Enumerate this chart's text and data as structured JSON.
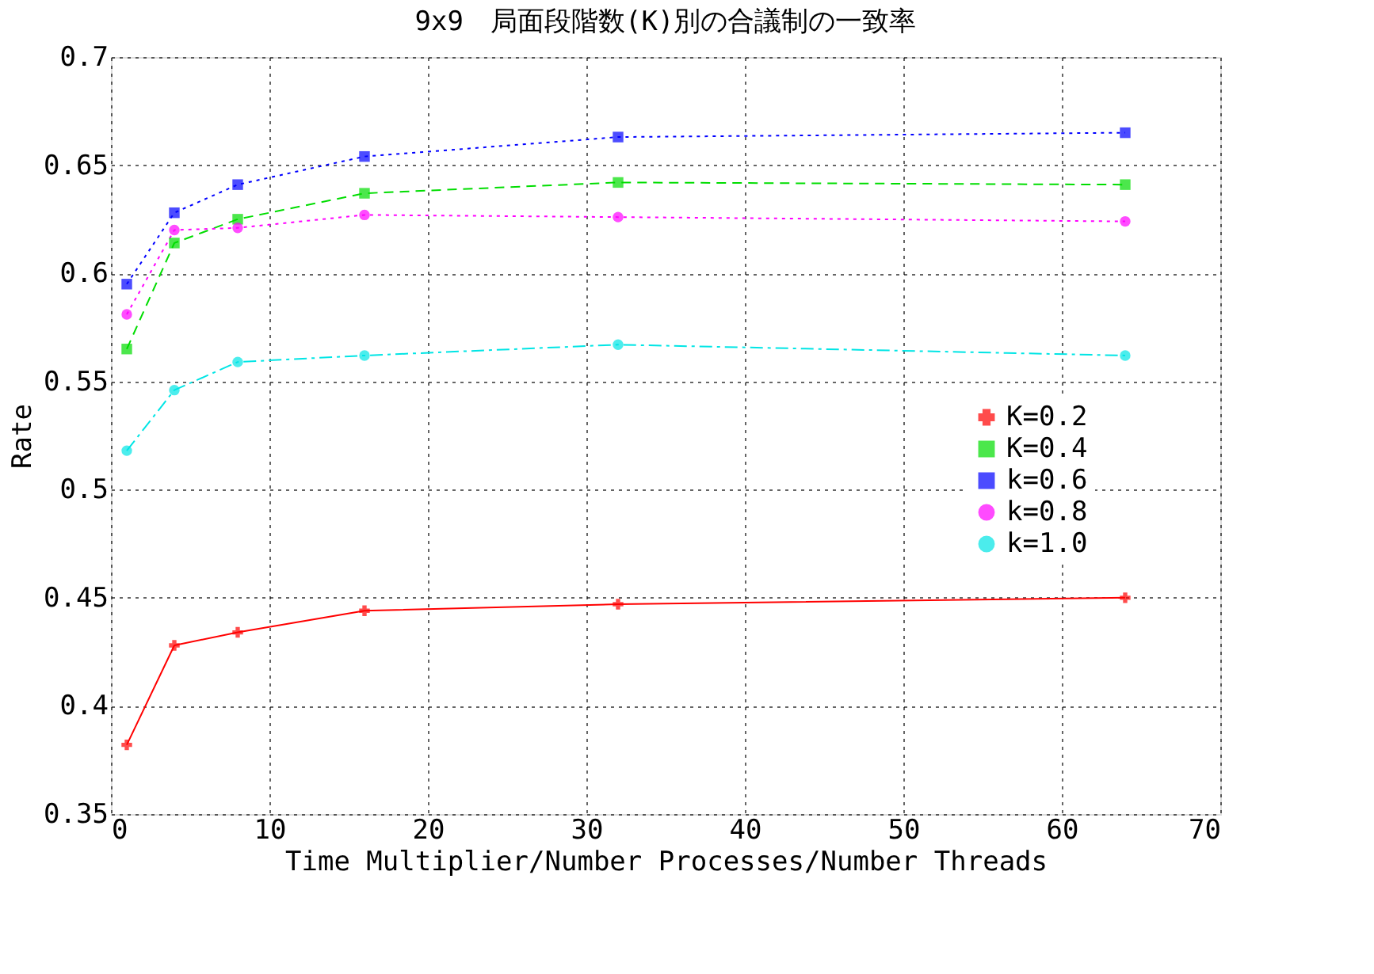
{
  "chart_data": {
    "type": "line",
    "title": "9x9　局面段階数(K)別の合議制の一致率",
    "xlabel": "Time Multiplier/Number Processes/Number Threads",
    "ylabel": "Rate",
    "x": [
      1,
      4,
      8,
      16,
      32,
      64
    ],
    "series": [
      {
        "name": "K=0.2",
        "color": "#ff0000",
        "marker": "cross",
        "line_style": "solid",
        "values": [
          0.382,
          0.428,
          0.434,
          0.444,
          0.447,
          0.45
        ]
      },
      {
        "name": "K=0.4",
        "color": "#00dd00",
        "marker": "square",
        "line_style": "dashed",
        "values": [
          0.565,
          0.614,
          0.625,
          0.637,
          0.642,
          0.641
        ]
      },
      {
        "name": "k=0.6",
        "color": "#0000ff",
        "marker": "square",
        "line_style": "dotted",
        "values": [
          0.595,
          0.628,
          0.641,
          0.654,
          0.663,
          0.665
        ]
      },
      {
        "name": "k=0.8",
        "color": "#ff00ff",
        "marker": "circle",
        "line_style": "dotted",
        "values": [
          0.581,
          0.62,
          0.621,
          0.627,
          0.626,
          0.624
        ]
      },
      {
        "name": "k=1.0",
        "color": "#00e5e5",
        "marker": "circle",
        "line_style": "dashdot",
        "values": [
          0.518,
          0.546,
          0.559,
          0.562,
          0.567,
          0.562
        ]
      }
    ],
    "xlim": [
      0,
      70
    ],
    "xticks": [
      0,
      10,
      20,
      30,
      40,
      50,
      60,
      70
    ],
    "ylim": [
      0.35,
      0.7
    ],
    "yticks": [
      0.35,
      0.4,
      0.45,
      0.5,
      0.55,
      0.6,
      0.65,
      0.7
    ],
    "grid": true,
    "legend": "right"
  }
}
